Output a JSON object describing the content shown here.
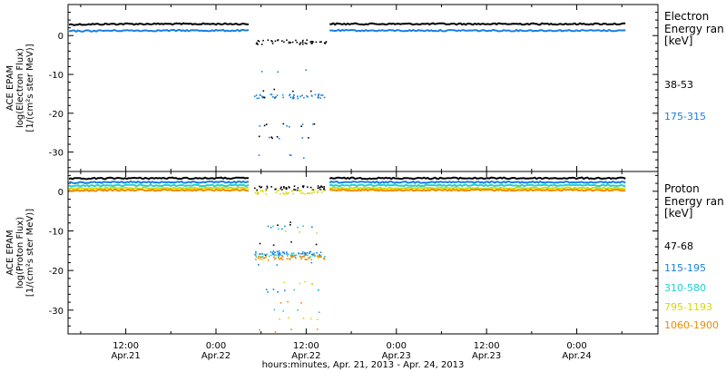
{
  "chart_data": [
    {
      "type": "scatter",
      "panel": "electron",
      "ylabel": [
        "ACE EPAM",
        "log(Electron Flux)",
        "[1/(cm²s ster MeV)]"
      ],
      "ylim": [
        -35,
        8
      ],
      "yticks": [
        0,
        -10,
        -20,
        -30
      ],
      "legend_title": [
        "Electron",
        "Energy ran",
        "[keV]"
      ],
      "series": [
        {
          "name": "38-53",
          "color": "#000000",
          "quiet_level": 3.0,
          "gap_cluster": -1.5,
          "gap_scatter": [
            -14,
            -16,
            -23,
            -26
          ]
        },
        {
          "name": "175-315",
          "color": "#1a7fe0",
          "quiet_level": 1.3,
          "gap_cluster": -15.5,
          "gap_scatter": [
            -9,
            -23,
            -26,
            -31
          ]
        }
      ]
    },
    {
      "type": "scatter",
      "panel": "proton",
      "ylabel": [
        "ACE EPAM",
        "log(Proton Flux)",
        "[1/(cm²s ster MeV)]"
      ],
      "ylim": [
        -36,
        5
      ],
      "yticks": [
        0,
        -10,
        -20,
        -30
      ],
      "legend_title": [
        "Proton",
        "Energy ran",
        "[keV]"
      ],
      "series": [
        {
          "name": "47-68",
          "color": "#000000",
          "quiet_level": 3.3,
          "gap_cluster": 1.0,
          "gap_scatter": [
            -8,
            -13,
            -16
          ]
        },
        {
          "name": "115-195",
          "color": "#1a7fe0",
          "quiet_level": 2.3,
          "gap_cluster": -15.5,
          "gap_scatter": [
            -9,
            -18,
            -25
          ]
        },
        {
          "name": "310-580",
          "color": "#20d0d0",
          "quiet_level": 1.5,
          "gap_cluster": -16.0,
          "gap_scatter": [
            -9,
            -25,
            -30
          ]
        },
        {
          "name": "795-1193",
          "color": "#d8d800",
          "quiet_level": 0.8,
          "gap_cluster": 0.0,
          "gap_scatter": [
            -10,
            -17,
            -23,
            -32
          ]
        },
        {
          "name": "1060-1900",
          "color": "#f08a00",
          "quiet_level": 0.3,
          "gap_cluster": -16.5,
          "gap_scatter": [
            -17,
            -28,
            -35
          ]
        }
      ]
    }
  ],
  "xaxis": {
    "ticks": [
      {
        "time": "12:00",
        "date": "Apr.21",
        "day": 0.5
      },
      {
        "time": "0:00",
        "date": "Apr.22",
        "day": 1.0
      },
      {
        "time": "12:00",
        "date": "Apr.22",
        "day": 1.5
      },
      {
        "time": "0:00",
        "date": "Apr.23",
        "day": 2.0
      },
      {
        "time": "12:00",
        "date": "Apr.23",
        "day": 2.5
      },
      {
        "time": "0:00",
        "date": "Apr.24",
        "day": 3.0
      }
    ],
    "xlabel": "hours:minutes, Apr. 21, 2013 - Apr. 24, 2013",
    "xlim_days": [
      0.18,
      3.45
    ],
    "data_end_day": 3.28,
    "gap_start_day": 1.19,
    "gap_end_day": 1.63
  }
}
